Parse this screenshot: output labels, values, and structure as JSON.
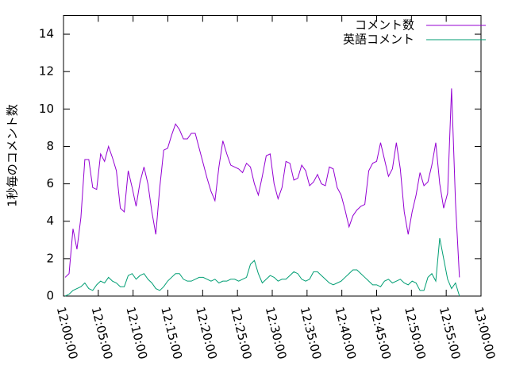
{
  "chart_data": {
    "type": "line",
    "y_label": "1秒毎のコメント数",
    "x": [
      "12:00:14",
      "12:00:48",
      "12:01:22",
      "12:01:56",
      "12:02:30",
      "12:03:04",
      "12:03:38",
      "12:04:12",
      "12:04:46",
      "12:05:20",
      "12:05:54",
      "12:06:28",
      "12:07:02",
      "12:07:36",
      "12:08:10",
      "12:08:44",
      "12:09:18",
      "12:09:52",
      "12:10:26",
      "12:11:00",
      "12:11:34",
      "12:12:08",
      "12:12:42",
      "12:13:16",
      "12:13:50",
      "12:14:24",
      "12:14:58",
      "12:15:32",
      "12:16:06",
      "12:16:40",
      "12:17:14",
      "12:17:48",
      "12:18:22",
      "12:18:56",
      "12:19:30",
      "12:20:04",
      "12:20:38",
      "12:21:12",
      "12:21:46",
      "12:22:20",
      "12:22:54",
      "12:23:28",
      "12:24:02",
      "12:24:36",
      "12:25:10",
      "12:25:44",
      "12:26:18",
      "12:26:52",
      "12:27:26",
      "12:28:00",
      "12:28:34",
      "12:29:08",
      "12:29:42",
      "12:30:16",
      "12:30:50",
      "12:31:24",
      "12:31:58",
      "12:32:32",
      "12:33:06",
      "12:33:40",
      "12:34:14",
      "12:34:48",
      "12:35:22",
      "12:35:56",
      "12:36:30",
      "12:37:04",
      "12:37:38",
      "12:38:12",
      "12:38:46",
      "12:39:20",
      "12:39:54",
      "12:40:28",
      "12:41:02",
      "12:41:36",
      "12:42:10",
      "12:42:44",
      "12:43:18",
      "12:43:52",
      "12:44:26",
      "12:45:00",
      "12:45:34",
      "12:46:08",
      "12:46:42",
      "12:47:16",
      "12:47:50",
      "12:48:24",
      "12:48:58",
      "12:49:32",
      "12:50:06",
      "12:50:40",
      "12:51:14",
      "12:51:48",
      "12:52:22",
      "12:52:56",
      "12:53:30",
      "12:54:04",
      "12:54:38",
      "12:55:12",
      "12:55:46",
      "12:56:20",
      "12:56:54"
    ],
    "series": [
      {
        "name": "コメント数",
        "color": "#9400d3",
        "values": [
          1.0,
          1.2,
          3.6,
          2.5,
          4.2,
          7.3,
          7.3,
          5.8,
          5.7,
          7.6,
          7.2,
          8.0,
          7.4,
          6.7,
          4.7,
          4.5,
          6.7,
          5.8,
          4.8,
          6.1,
          6.9,
          6.0,
          4.5,
          3.3,
          5.8,
          7.8,
          7.9,
          8.6,
          9.2,
          8.9,
          8.4,
          8.4,
          8.7,
          8.7,
          7.9,
          7.1,
          6.3,
          5.6,
          5.1,
          6.9,
          8.3,
          7.6,
          7.0,
          6.9,
          6.8,
          6.6,
          7.1,
          6.9,
          6.0,
          5.4,
          6.4,
          7.5,
          7.6,
          6.0,
          5.2,
          5.8,
          7.2,
          7.1,
          6.2,
          6.3,
          7.0,
          6.7,
          5.9,
          6.1,
          6.5,
          6.0,
          5.9,
          6.9,
          6.8,
          5.8,
          5.4,
          4.6,
          3.7,
          4.3,
          4.6,
          4.8,
          4.9,
          6.7,
          7.1,
          7.2,
          8.2,
          7.3,
          6.4,
          6.8,
          8.2,
          6.8,
          4.5,
          3.3,
          4.5,
          5.4,
          6.6,
          5.9,
          6.1,
          7.0,
          8.2,
          6.0,
          4.7,
          5.5,
          11.1,
          5.0,
          1.0
        ]
      },
      {
        "name": "英語コメント",
        "color": "#009e73",
        "values": [
          0.0,
          0.1,
          0.3,
          0.4,
          0.5,
          0.7,
          0.4,
          0.3,
          0.6,
          0.8,
          0.7,
          1.0,
          0.8,
          0.7,
          0.5,
          0.5,
          1.1,
          1.2,
          0.9,
          1.1,
          1.2,
          0.9,
          0.7,
          0.4,
          0.3,
          0.5,
          0.8,
          1.0,
          1.2,
          1.2,
          0.9,
          0.8,
          0.8,
          0.9,
          1.0,
          1.0,
          0.9,
          0.8,
          0.9,
          0.7,
          0.8,
          0.8,
          0.9,
          0.9,
          0.8,
          0.9,
          1.0,
          1.7,
          1.9,
          1.2,
          0.7,
          0.9,
          1.1,
          1.0,
          0.8,
          0.9,
          0.9,
          1.1,
          1.3,
          1.2,
          0.9,
          0.8,
          0.9,
          1.3,
          1.3,
          1.1,
          0.9,
          0.7,
          0.6,
          0.7,
          0.8,
          1.0,
          1.2,
          1.4,
          1.4,
          1.2,
          1.0,
          0.8,
          0.6,
          0.6,
          0.5,
          0.8,
          0.9,
          0.7,
          0.8,
          0.9,
          0.7,
          0.6,
          0.8,
          0.7,
          0.3,
          0.3,
          1.0,
          1.2,
          0.8,
          3.1,
          2.0,
          0.9,
          0.4,
          0.7,
          0.0
        ]
      }
    ],
    "xlim": [
      "12:00:00",
      "13:00:00"
    ],
    "xticks": [
      "12:00:00",
      "12:05:00",
      "12:10:00",
      "12:15:00",
      "12:20:00",
      "12:25:00",
      "12:30:00",
      "12:35:00",
      "12:40:00",
      "12:45:00",
      "12:50:00",
      "12:55:00",
      "13:00:00"
    ],
    "ylim": [
      0,
      15
    ],
    "yticks": [
      0,
      2,
      4,
      6,
      8,
      10,
      12,
      14
    ],
    "legend": "top-right"
  }
}
